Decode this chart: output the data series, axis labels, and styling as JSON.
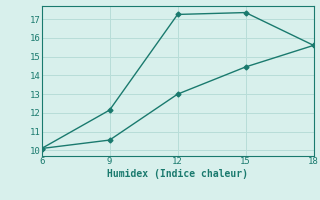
{
  "line1_x": [
    6,
    9,
    12,
    15,
    18
  ],
  "line1_y": [
    10.1,
    12.15,
    17.25,
    17.35,
    15.6
  ],
  "line2_x": [
    6,
    9,
    12,
    15,
    18
  ],
  "line2_y": [
    10.1,
    10.55,
    13.0,
    14.45,
    15.6
  ],
  "line_color": "#1a7a6e",
  "bg_color": "#d8f0ec",
  "grid_color": "#b8ddd8",
  "xlabel": "Humidex (Indice chaleur)",
  "xlim": [
    6,
    18
  ],
  "ylim": [
    9.7,
    17.7
  ],
  "xticks": [
    6,
    9,
    12,
    15,
    18
  ],
  "yticks": [
    10,
    11,
    12,
    13,
    14,
    15,
    16,
    17
  ],
  "marker": "D",
  "markersize": 2.5,
  "linewidth": 1.0
}
